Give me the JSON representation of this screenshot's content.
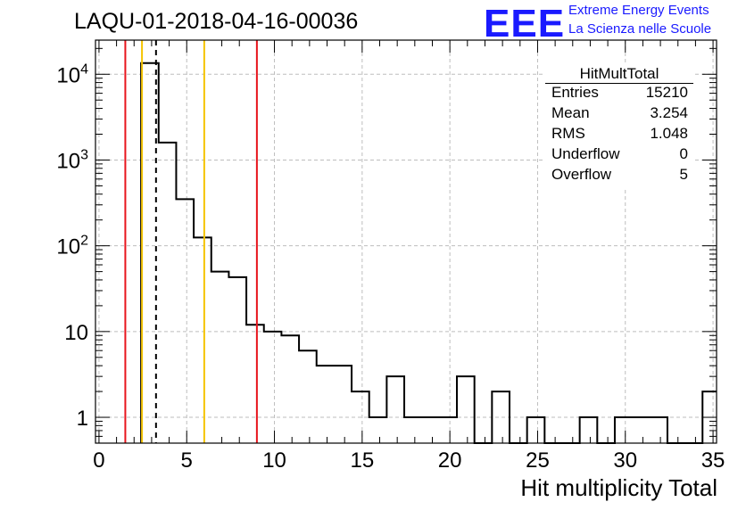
{
  "header": {
    "run_title": "LAQU-01-2018-04-16-00036",
    "logo_text": "EEE",
    "logo_line1": "Extreme Energy Events",
    "logo_line2": "La Scienza nelle Scuole"
  },
  "stats_box": {
    "title": "HitMultTotal",
    "rows": [
      {
        "key": "Entries",
        "value": "15210"
      },
      {
        "key": "Mean",
        "value": "3.254"
      },
      {
        "key": "RMS",
        "value": "1.048"
      },
      {
        "key": "Underflow",
        "value": "0"
      },
      {
        "key": "Overflow",
        "value": "5"
      }
    ]
  },
  "colors": {
    "red_line": "#e8141c",
    "yellow_line": "#f5c400",
    "histogram": "#000000",
    "grid": "#bdbdbd",
    "logo_blue": "#1a1aff"
  },
  "chart_data": {
    "type": "histogram",
    "title": "LAQU-01-2018-04-16-00036",
    "xlabel": "Hit multiplicity Total",
    "ylabel": "",
    "yscale": "log",
    "xlim": [
      -0.2,
      35.2
    ],
    "ylim": [
      0.5,
      25000
    ],
    "x_ticks": [
      0,
      5,
      10,
      15,
      20,
      25,
      30,
      35
    ],
    "x_tick_labels": [
      "0",
      "5",
      "10",
      "15",
      "20",
      "25",
      "30",
      "35"
    ],
    "y_ticks": [
      1,
      10,
      100,
      1000,
      10000
    ],
    "y_tick_labels": [
      {
        "base": "1",
        "exp": ""
      },
      {
        "base": "10",
        "exp": ""
      },
      {
        "base": "10",
        "exp": "2"
      },
      {
        "base": "10",
        "exp": "3"
      },
      {
        "base": "10",
        "exp": "4"
      }
    ],
    "bin_edges": [
      2.4,
      3.4,
      4.4,
      5.4,
      6.4,
      7.4,
      8.4,
      9.4,
      10.4,
      11.4,
      12.4,
      13.4,
      14.4,
      15.4,
      16.4,
      17.4,
      18.4,
      19.4,
      20.4,
      21.4,
      22.4,
      23.4,
      24.4,
      25.4,
      26.4,
      27.4,
      28.4,
      29.4,
      30.4,
      31.4,
      32.4,
      33.4,
      34.4,
      35.2
    ],
    "counts": [
      13500,
      1600,
      350,
      125,
      50,
      43,
      12,
      10,
      9,
      6,
      4,
      4,
      2,
      1,
      3,
      1,
      1,
      1,
      3,
      0,
      2,
      0,
      1,
      0,
      0,
      1,
      0,
      1,
      1,
      1,
      0,
      0,
      2
    ],
    "vertical_lines": [
      {
        "name": "red-line-left",
        "x": 1.5,
        "color": "#e8141c",
        "style": "solid"
      },
      {
        "name": "yellow-line-left",
        "x": 2.45,
        "color": "#f5c400",
        "style": "solid"
      },
      {
        "name": "mean-dashed-line",
        "x": 3.25,
        "color": "#000000",
        "style": "dashed"
      },
      {
        "name": "yellow-line-right",
        "x": 6.0,
        "color": "#f5c400",
        "style": "solid"
      },
      {
        "name": "red-line-right",
        "x": 9.0,
        "color": "#e8141c",
        "style": "solid"
      }
    ]
  }
}
